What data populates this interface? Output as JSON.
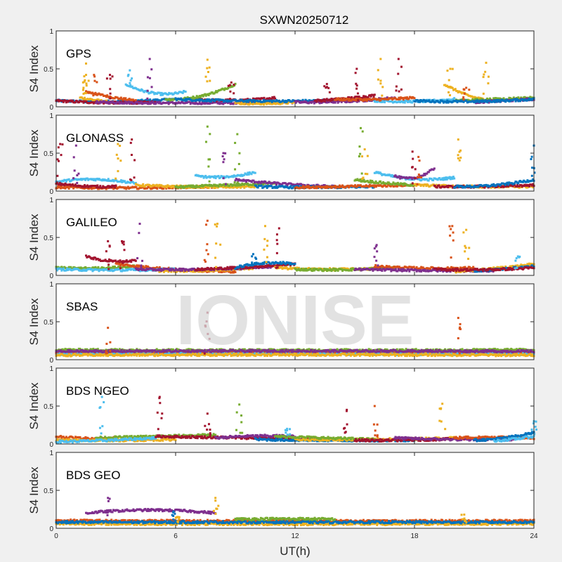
{
  "chart_data": {
    "type": "scatter",
    "title": "SXWN20250712",
    "xlabel": "UT(h)",
    "ylabel": "S4 Index",
    "xlim": [
      0,
      24
    ],
    "ylim": [
      0,
      1
    ],
    "xticks": [
      "0",
      "6",
      "12",
      "18",
      "24"
    ],
    "yticks": [
      "0",
      "0.5",
      "1"
    ],
    "watermark": "IONISE",
    "colors": [
      "#0072BD",
      "#D95319",
      "#EDB120",
      "#7E2F8E",
      "#77AC30",
      "#4DBEEE",
      "#A2142F"
    ],
    "panels": [
      {
        "name": "GPS",
        "tracks": [
          [
            0,
            0,
            6,
            0.08,
            0.05,
            0.1
          ],
          [
            1,
            1.5,
            4,
            0.2,
            0.12,
            0.08
          ],
          [
            2,
            1.2,
            3,
            0.12,
            0.08,
            0.05
          ],
          [
            6,
            0,
            5,
            0.08,
            0.04,
            0.06
          ],
          [
            3,
            2,
            12,
            0.06,
            0.04,
            0.06
          ],
          [
            5,
            3.5,
            6.5,
            0.3,
            0.1,
            0.2
          ],
          [
            6,
            7,
            11,
            0.1,
            0.06,
            0.12
          ],
          [
            4,
            5.5,
            9,
            0.1,
            0.08,
            0.3
          ],
          [
            2,
            9,
            12,
            0.05,
            0.03,
            0.06
          ],
          [
            0,
            6,
            16,
            0.1,
            0.05,
            0.1
          ],
          [
            3,
            12,
            17,
            0.06,
            0.05,
            0.12
          ],
          [
            6,
            13,
            16,
            0.08,
            0.1,
            0.15
          ],
          [
            5,
            16,
            20,
            0.08,
            0.05,
            0.1
          ],
          [
            1,
            14,
            18,
            0.1,
            0.08,
            0.12
          ],
          [
            2,
            19.5,
            22,
            0.3,
            0.1,
            0.08
          ],
          [
            4,
            20,
            24,
            0.08,
            0.1,
            0.12
          ],
          [
            3,
            21,
            24,
            0.06,
            0.08,
            0.1
          ],
          [
            0,
            18,
            24,
            0.08,
            0.05,
            0.1
          ]
        ],
        "spikes": [
          [
            1.5,
            0.57,
            2
          ],
          [
            1.5,
            0.42,
            2
          ],
          [
            1.9,
            0.42,
            1
          ],
          [
            2.7,
            0.42,
            6
          ],
          [
            3.7,
            0.48,
            5
          ],
          [
            4.7,
            0.63,
            3
          ],
          [
            7.6,
            0.62,
            2
          ],
          [
            8.8,
            0.32,
            6
          ],
          [
            13.6,
            0.3,
            6
          ],
          [
            15.1,
            0.5,
            6
          ],
          [
            16.3,
            0.63,
            2
          ],
          [
            17.2,
            0.63,
            6
          ],
          [
            19.8,
            0.5,
            2
          ],
          [
            21.6,
            0.58,
            2
          ],
          [
            20.6,
            0.25,
            1
          ]
        ]
      },
      {
        "name": "GLONASS",
        "tracks": [
          [
            5,
            0,
            4,
            0.12,
            0.2,
            0.1
          ],
          [
            1,
            0,
            8,
            0.05,
            0.03,
            0.06
          ],
          [
            6,
            0,
            3,
            0.1,
            0.05,
            0.06
          ],
          [
            2,
            4,
            10,
            0.08,
            0.04,
            0.06
          ],
          [
            4,
            6,
            11,
            0.05,
            0.08,
            0.1
          ],
          [
            3,
            9,
            14,
            0.15,
            0.08,
            0.06
          ],
          [
            5,
            7,
            10,
            0.2,
            0.15,
            0.25
          ],
          [
            0,
            10,
            16,
            0.06,
            0.04,
            0.06
          ],
          [
            1,
            12,
            18,
            0.05,
            0.06,
            0.08
          ],
          [
            5,
            16,
            20,
            0.25,
            0.1,
            0.18
          ],
          [
            4,
            15,
            18,
            0.15,
            0.1,
            0.08
          ],
          [
            2,
            18,
            24,
            0.08,
            0.05,
            0.06
          ],
          [
            6,
            19,
            24,
            0.06,
            0.05,
            0.08
          ],
          [
            0,
            20,
            24,
            0.06,
            0.05,
            0.15
          ],
          [
            3,
            17,
            19,
            0.2,
            0.1,
            0.3
          ]
        ],
        "spikes": [
          [
            0.2,
            0.62,
            6
          ],
          [
            1.0,
            0.6,
            3
          ],
          [
            3.1,
            0.62,
            2
          ],
          [
            3.8,
            0.68,
            6
          ],
          [
            7.6,
            0.85,
            4
          ],
          [
            9.1,
            0.75,
            4
          ],
          [
            8.4,
            0.5,
            3
          ],
          [
            15.3,
            0.83,
            4
          ],
          [
            15.5,
            0.55,
            2
          ],
          [
            17.9,
            0.52,
            6
          ],
          [
            18.2,
            0.45,
            1
          ],
          [
            20.2,
            0.68,
            2
          ],
          [
            24,
            0.6,
            0
          ]
        ]
      },
      {
        "name": "GALILEO",
        "tracks": [
          [
            4,
            0,
            4,
            0.1,
            0.08,
            0.12
          ],
          [
            6,
            1.5,
            4,
            0.25,
            0.15,
            0.2
          ],
          [
            1,
            3,
            9,
            0.15,
            0.06,
            0.05
          ],
          [
            5,
            0,
            6,
            0.08,
            0.06,
            0.08
          ],
          [
            2,
            5,
            10,
            0.06,
            0.05,
            0.1
          ],
          [
            3,
            4,
            11,
            0.08,
            0.06,
            0.12
          ],
          [
            6,
            7,
            12,
            0.08,
            0.1,
            0.15
          ],
          [
            0,
            9,
            12,
            0.1,
            0.2,
            0.15
          ],
          [
            2,
            11,
            17,
            0.1,
            0.06,
            0.1
          ],
          [
            4,
            12,
            17,
            0.08,
            0.06,
            0.1
          ],
          [
            1,
            16,
            21,
            0.12,
            0.08,
            0.1
          ],
          [
            3,
            15,
            22,
            0.08,
            0.06,
            0.06
          ],
          [
            2,
            20,
            24,
            0.05,
            0.08,
            0.15
          ],
          [
            0,
            21,
            24,
            0.06,
            0.08,
            0.12
          ],
          [
            6,
            19,
            24,
            0.08,
            0.06,
            0.1
          ]
        ],
        "spikes": [
          [
            2.6,
            0.45,
            6
          ],
          [
            3.3,
            0.45,
            6
          ],
          [
            4.2,
            0.68,
            3
          ],
          [
            7.6,
            0.72,
            1
          ],
          [
            8.1,
            0.68,
            2
          ],
          [
            10.5,
            0.65,
            2
          ],
          [
            11.2,
            0.62,
            6
          ],
          [
            9.9,
            0.28,
            0
          ],
          [
            16.1,
            0.4,
            3
          ],
          [
            19.9,
            0.65,
            1
          ],
          [
            20.6,
            0.6,
            2
          ],
          [
            23.2,
            0.25,
            5
          ]
        ]
      },
      {
        "name": "SBAS",
        "tracks": [
          [
            0,
            0,
            24,
            0.1,
            0.1,
            0.1
          ],
          [
            6,
            0,
            24,
            0.1,
            0.11,
            0.1
          ],
          [
            4,
            0,
            24,
            0.13,
            0.12,
            0.13
          ],
          [
            1,
            0,
            24,
            0.08,
            0.09,
            0.08
          ],
          [
            5,
            0,
            24,
            0.07,
            0.08,
            0.07
          ],
          [
            3,
            0,
            24,
            0.11,
            0.12,
            0.11
          ],
          [
            2,
            0,
            24,
            0.06,
            0.07,
            0.06
          ]
        ],
        "spikes": [
          [
            2.6,
            0.42,
            1
          ],
          [
            7.6,
            0.62,
            6
          ],
          [
            20.2,
            0.55,
            1
          ]
        ]
      },
      {
        "name": "BDS NGEO",
        "tracks": [
          [
            1,
            0,
            3,
            0.1,
            0.06,
            0.08
          ],
          [
            4,
            2,
            8,
            0.08,
            0.1,
            0.12
          ],
          [
            2,
            0,
            6,
            0.05,
            0.04,
            0.06
          ],
          [
            5,
            0,
            5,
            0.03,
            0.04,
            0.08
          ],
          [
            6,
            5,
            14,
            0.1,
            0.08,
            0.06
          ],
          [
            3,
            8,
            12,
            0.08,
            0.12,
            0.1
          ],
          [
            0,
            10,
            18,
            0.06,
            0.04,
            0.05
          ],
          [
            2,
            12,
            20,
            0.06,
            0.05,
            0.08
          ],
          [
            4,
            11,
            16,
            0.1,
            0.08,
            0.06
          ],
          [
            6,
            15,
            21,
            0.05,
            0.04,
            0.08
          ],
          [
            3,
            17,
            23,
            0.08,
            0.05,
            0.06
          ],
          [
            1,
            20,
            24,
            0.08,
            0.1,
            0.08
          ],
          [
            0,
            21,
            24,
            0.05,
            0.06,
            0.15
          ],
          [
            5,
            22,
            24,
            0.04,
            0.06,
            0.1
          ]
        ],
        "spikes": [
          [
            2.3,
            0.62,
            5
          ],
          [
            5.2,
            0.62,
            6
          ],
          [
            7.6,
            0.4,
            6
          ],
          [
            9.2,
            0.52,
            4
          ],
          [
            11.6,
            0.2,
            5
          ],
          [
            14.6,
            0.45,
            6
          ],
          [
            16.0,
            0.5,
            1
          ],
          [
            19.4,
            0.53,
            2
          ],
          [
            24,
            0.3,
            5
          ]
        ]
      },
      {
        "name": "BDS GEO",
        "tracks": [
          [
            1,
            0,
            24,
            0.1,
            0.09,
            0.1
          ],
          [
            2,
            0,
            24,
            0.06,
            0.05,
            0.06
          ],
          [
            0,
            0,
            24,
            0.08,
            0.08,
            0.08
          ],
          [
            3,
            1.5,
            8,
            0.2,
            0.28,
            0.2
          ],
          [
            4,
            9,
            14,
            0.12,
            0.13,
            0.12
          ]
        ],
        "spikes": [
          [
            2.6,
            0.4,
            3
          ],
          [
            5.9,
            0.22,
            0
          ],
          [
            6.1,
            0.15,
            2
          ],
          [
            8.0,
            0.4,
            2
          ],
          [
            20.5,
            0.18,
            2
          ]
        ]
      }
    ]
  }
}
